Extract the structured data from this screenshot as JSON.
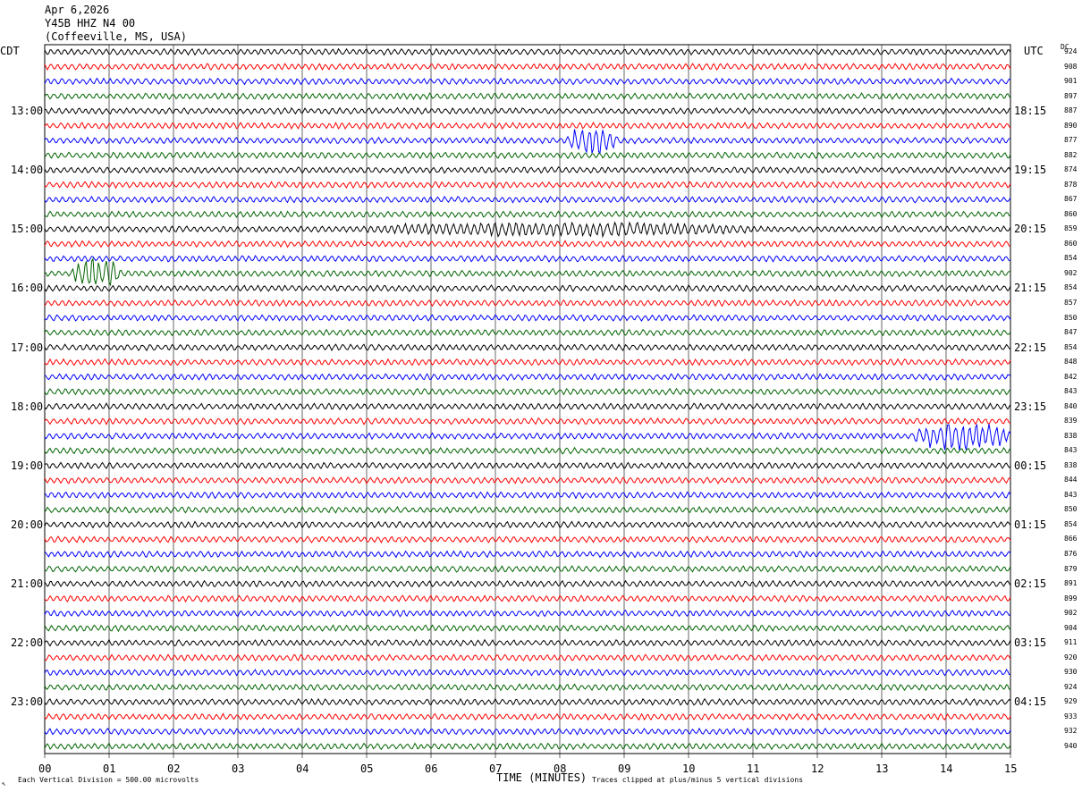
{
  "header": {
    "date": "Apr 6,2026",
    "station": "Y45B HHZ N4 00",
    "location": "(Coffeeville, MS, USA)"
  },
  "left_tz": "CDT",
  "right_tz": "UTC",
  "dc_label": "DC",
  "footer": {
    "scale": "Each Vertical Division =  500.00 microvolts",
    "xlabel": "TIME (MINUTES)",
    "clip_note": "Traces clipped at plus/minus 5 vertical divisions",
    "corner": "↖"
  },
  "colors": {
    "cycle": [
      "#000000",
      "#ff0000",
      "#0000ff",
      "#006400"
    ],
    "grid": "#000000"
  },
  "chart_data": {
    "type": "line",
    "subtype": "helicorder",
    "xlabel": "TIME (MINUTES)",
    "xlim": [
      0,
      15
    ],
    "x_ticks": [
      "00",
      "01",
      "02",
      "03",
      "04",
      "05",
      "06",
      "07",
      "08",
      "09",
      "10",
      "11",
      "12",
      "13",
      "14",
      "15"
    ],
    "minutes_per_line": 15,
    "grid": true,
    "left_hour_labels": [
      "13:00",
      "14:00",
      "15:00",
      "16:00",
      "17:00",
      "18:00",
      "19:00",
      "20:00",
      "21:00",
      "22:00",
      "23:00"
    ],
    "right_hour_labels": [
      "18:15",
      "19:15",
      "20:15",
      "21:15",
      "22:15",
      "23:15",
      "00:15",
      "01:15",
      "02:15",
      "03:15",
      "04:15"
    ],
    "dc_offsets": [
      924,
      908,
      901,
      897,
      887,
      890,
      877,
      882,
      874,
      878,
      867,
      860,
      859,
      860,
      854,
      902,
      854,
      857,
      850,
      847,
      854,
      848,
      842,
      843,
      840,
      839,
      838,
      843,
      838,
      844,
      843,
      850,
      854,
      866,
      876,
      879,
      891,
      899,
      902,
      904,
      911,
      920,
      930,
      924,
      929,
      933,
      932,
      940
    ],
    "events": [
      {
        "line": 6,
        "start_min": 8.1,
        "end_min": 8.9,
        "amplitude": "large"
      },
      {
        "line": 12,
        "start_min": 5.0,
        "end_min": 11.0,
        "amplitude": "moderate"
      },
      {
        "line": 15,
        "start_min": 0.4,
        "end_min": 1.2,
        "amplitude": "large"
      },
      {
        "line": 26,
        "start_min": 13.5,
        "end_min": 15.0,
        "amplitude": "large"
      }
    ]
  }
}
